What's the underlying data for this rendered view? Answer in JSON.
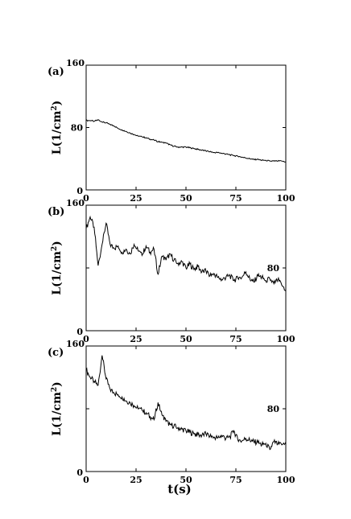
{
  "chart_data": [
    {
      "type": "line",
      "panel_label": "(a)",
      "ylabel": "L(1/cm",
      "ylabel_sup": "2",
      "ylabel_close": ")",
      "xlim": [
        0,
        100
      ],
      "ylim": [
        0,
        160
      ],
      "xticks": [
        0,
        25,
        50,
        75,
        100
      ],
      "yticks": [
        0,
        80,
        160
      ],
      "series": [
        {
          "x": [
            0,
            2,
            4,
            6,
            8,
            10,
            12,
            14,
            16,
            18,
            20,
            22,
            24,
            26,
            28,
            30,
            32,
            34,
            36,
            38,
            40,
            42,
            44,
            46,
            48,
            50,
            52,
            54,
            56,
            58,
            60,
            62,
            64,
            66,
            68,
            70,
            72,
            74,
            76,
            78,
            80,
            82,
            84,
            86,
            88,
            90,
            92,
            94,
            96,
            98,
            100
          ],
          "values": [
            89,
            89,
            88,
            90,
            87,
            86,
            84,
            82,
            79,
            77,
            75,
            73,
            71,
            69,
            68,
            67,
            65,
            64,
            62,
            61,
            60,
            58,
            56,
            55,
            55,
            55,
            54,
            53,
            52,
            51,
            50,
            49,
            48,
            48,
            47,
            46,
            45,
            44,
            43,
            42,
            41,
            40,
            39,
            39,
            38,
            38,
            37,
            37,
            37,
            37,
            36
          ]
        }
      ]
    },
    {
      "type": "line",
      "panel_label": "(b)",
      "ylabel": "L(1/cm",
      "ylabel_sup": "2",
      "ylabel_close": ")",
      "xlim": [
        0,
        100
      ],
      "ylim": [
        0,
        160
      ],
      "xticks": [
        0,
        25,
        50,
        75,
        100
      ],
      "yticks": [
        0,
        80,
        160
      ],
      "series": [
        {
          "x": [
            0,
            2,
            4,
            6,
            8,
            10,
            12,
            14,
            16,
            18,
            20,
            22,
            24,
            26,
            28,
            30,
            32,
            34,
            36,
            38,
            40,
            42,
            44,
            46,
            48,
            50,
            52,
            54,
            56,
            58,
            60,
            62,
            64,
            66,
            68,
            70,
            72,
            74,
            76,
            78,
            80,
            82,
            84,
            86,
            88,
            90,
            92,
            94,
            96,
            98,
            100
          ],
          "values": [
            130,
            145,
            132,
            83,
            110,
            137,
            110,
            105,
            108,
            100,
            104,
            98,
            110,
            102,
            96,
            108,
            100,
            104,
            72,
            95,
            90,
            98,
            90,
            86,
            88,
            80,
            85,
            78,
            82,
            75,
            76,
            70,
            73,
            68,
            65,
            68,
            70,
            64,
            67,
            68,
            75,
            66,
            62,
            70,
            68,
            64,
            66,
            60,
            65,
            58,
            52
          ]
        }
      ]
    },
    {
      "type": "line",
      "panel_label": "(c)",
      "ylabel": "L(1/cm",
      "ylabel_sup": "2",
      "ylabel_close": ")",
      "xlabel": "t(s)",
      "xlim": [
        0,
        100
      ],
      "ylim": [
        0,
        160
      ],
      "xticks": [
        0,
        25,
        50,
        75,
        100
      ],
      "yticks": [
        0,
        80,
        160
      ],
      "series": [
        {
          "x": [
            0,
            2,
            4,
            6,
            8,
            10,
            12,
            14,
            16,
            18,
            20,
            22,
            24,
            26,
            28,
            30,
            32,
            34,
            36,
            38,
            40,
            42,
            44,
            46,
            48,
            50,
            52,
            54,
            56,
            58,
            60,
            62,
            64,
            66,
            68,
            70,
            72,
            74,
            76,
            78,
            80,
            82,
            84,
            86,
            88,
            90,
            92,
            94,
            96,
            98,
            100
          ],
          "values": [
            130,
            120,
            115,
            110,
            148,
            118,
            105,
            100,
            98,
            95,
            90,
            88,
            84,
            80,
            78,
            75,
            70,
            66,
            88,
            72,
            64,
            60,
            58,
            56,
            54,
            52,
            50,
            48,
            47,
            46,
            48,
            45,
            44,
            43,
            46,
            42,
            44,
            52,
            40,
            39,
            42,
            40,
            38,
            37,
            34,
            36,
            28,
            38,
            35,
            34,
            38
          ]
        }
      ]
    }
  ]
}
